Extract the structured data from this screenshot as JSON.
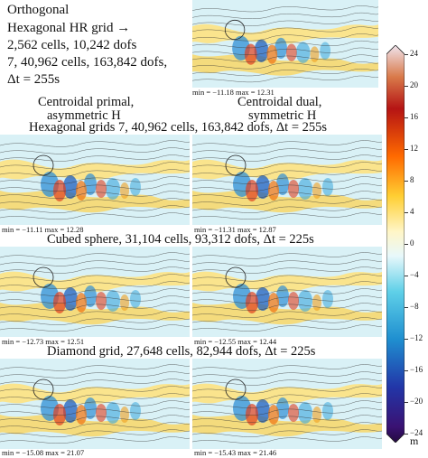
{
  "intro": {
    "line1": "Orthogonal",
    "line2": "Hexagonal HR grid →",
    "line3": "2,562 cells, 10,242 dofs",
    "line4": "7, 40,962 cells, 163,842 dofs,",
    "line5": "Δt = 255s"
  },
  "columns": {
    "left": {
      "line1": "Centroidal primal,",
      "line2": "asymmetric H"
    },
    "right": {
      "line1": "Centroidal dual,",
      "line2": "symmetric H"
    }
  },
  "rows": [
    {
      "heading": "Hexagonal grids 7, 40,962 cells, 163,842 dofs, Δt = 255s",
      "left_stats": "min = −11.11   max = 12.28",
      "right_stats": "min = −11.31   max = 12.87"
    },
    {
      "heading": "Cubed sphere, 31,104 cells, 93,312 dofs, Δt = 225s",
      "left_stats": "min = −12.73   max = 12.51",
      "right_stats": "min = −12.55   max = 12.44"
    },
    {
      "heading": "Diamond grid, 27,648 cells, 82,944 dofs, Δt = 225s",
      "left_stats": "min = −15.08   max = 21.07",
      "right_stats": "min = −15.43   max = 21.46"
    }
  ],
  "top_panel": {
    "stats": "min = −11.18   max = 12.31"
  },
  "colorbar": {
    "ticks": [
      "24",
      "20",
      "16",
      "12",
      "8",
      "4",
      "0",
      "−4",
      "−8",
      "−12",
      "−16",
      "−20",
      "−24"
    ],
    "unit": "m",
    "colors": [
      "#f2e6f2",
      "#5a1a8a",
      "#2f3fbf",
      "#2aa3d8",
      "#bfeaf2",
      "#ffffff",
      "#ffe680",
      "#ffb000",
      "#e8401c",
      "#9a0f0f",
      "#2a0a0a"
    ]
  }
}
